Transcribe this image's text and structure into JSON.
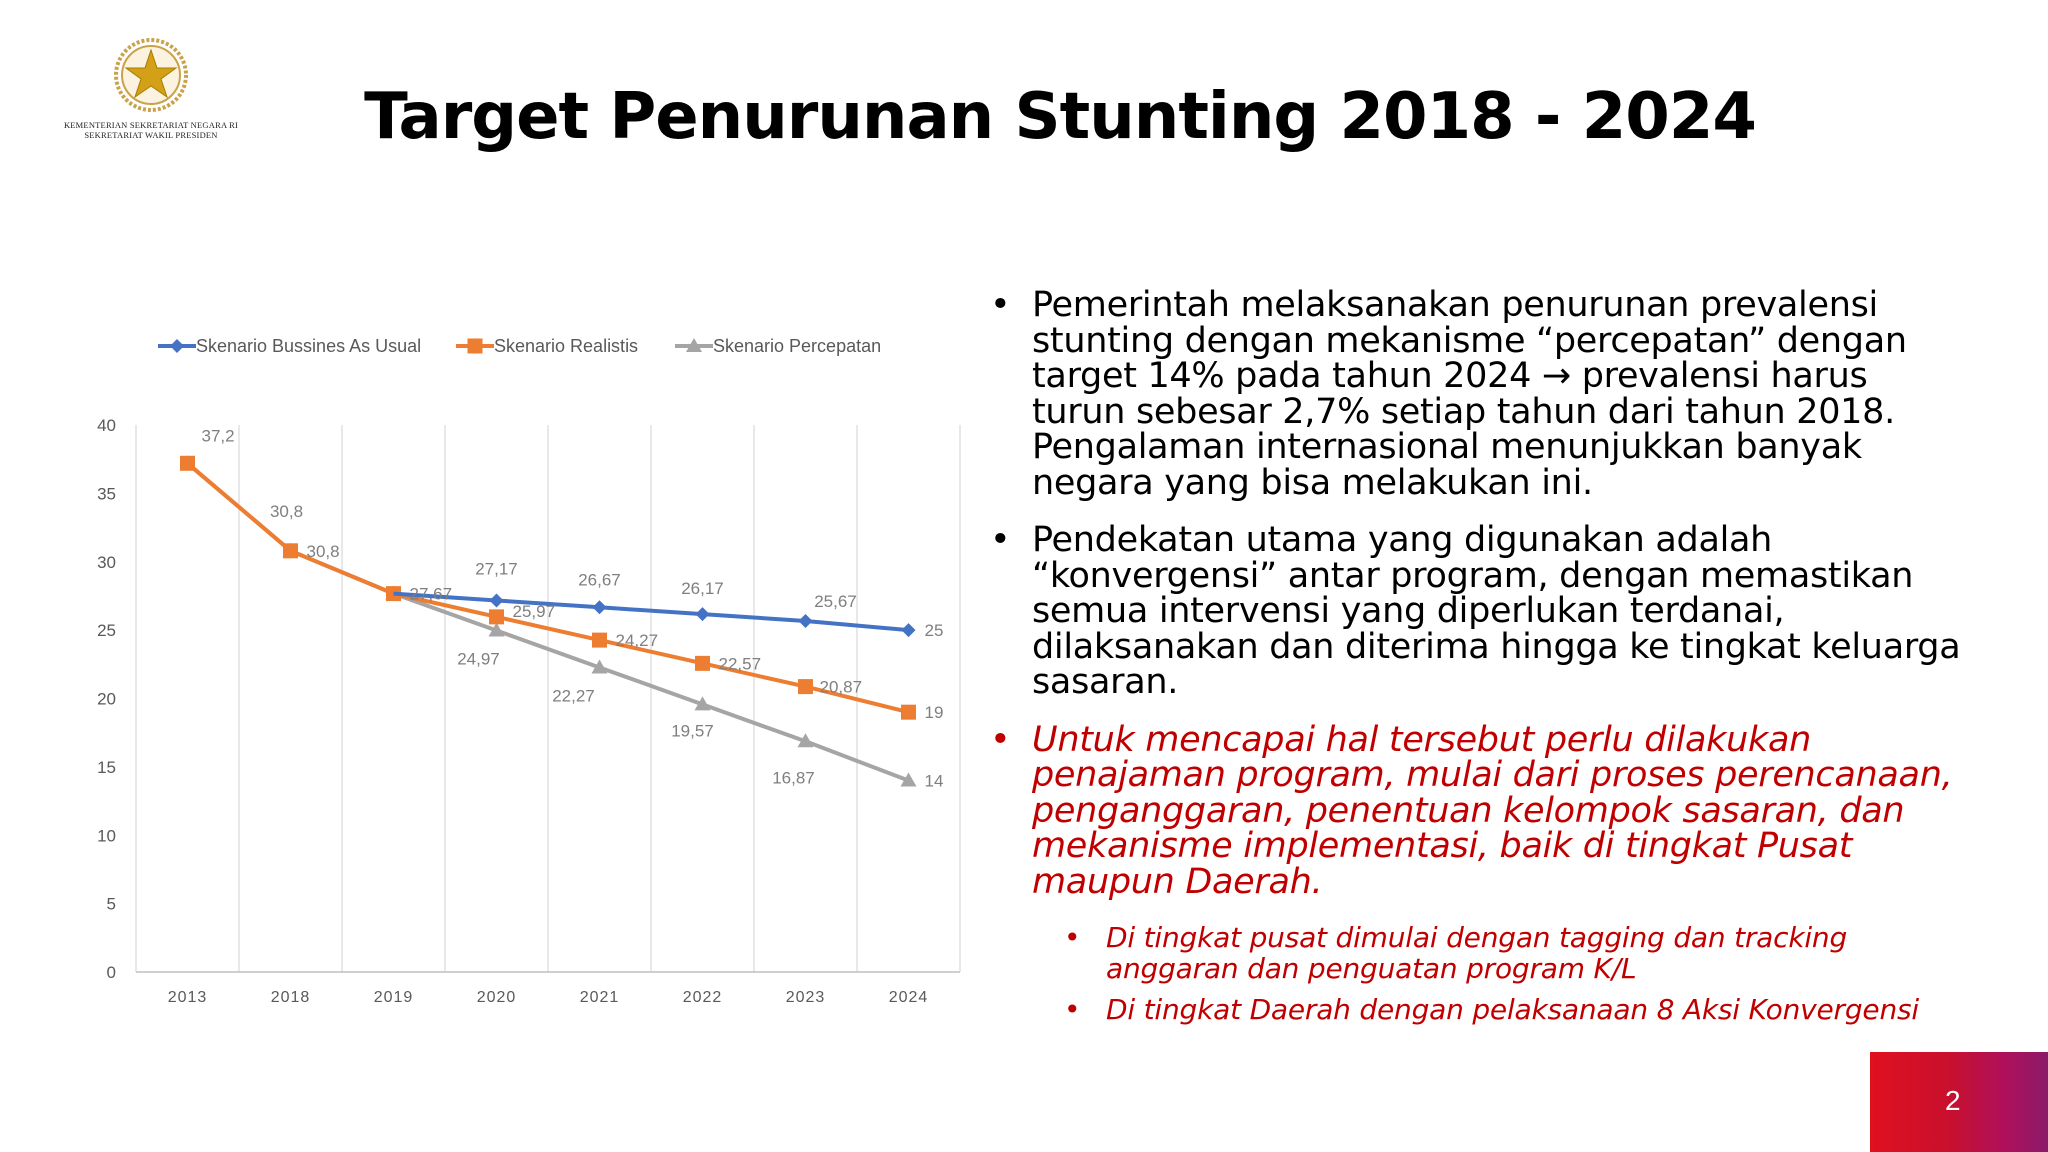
{
  "header": {
    "logo_icon": "garuda-star-emblem-icon",
    "org_line1": "KEMENTERIAN SEKRETARIAT NEGARA RI",
    "org_line2": "SEKRETARIAT WAKIL PRESIDEN",
    "title": "Target Penurunan Stunting 2018 - 2024"
  },
  "chart_data": {
    "type": "line",
    "categories": [
      "2013",
      "2018",
      "2019",
      "2020",
      "2021",
      "2022",
      "2023",
      "2024"
    ],
    "ylim": [
      0,
      40
    ],
    "yticks": [
      "0",
      "5",
      "10",
      "15",
      "20",
      "25",
      "30",
      "35",
      "40"
    ],
    "grid": "vertical",
    "legend": "top",
    "series": [
      {
        "name": "Skenario Bussines As Usual",
        "color": "#4472c4",
        "marker": "diamond",
        "values": [
          null,
          null,
          null,
          27.17,
          26.67,
          26.17,
          25.67,
          25
        ],
        "labels": [
          "",
          "",
          "",
          "27,17",
          "26,67",
          "26,17",
          "25,67",
          "25"
        ]
      },
      {
        "name": "Skenario Realistis",
        "color": "#ed7d31",
        "marker": "square",
        "values": [
          37.2,
          30.8,
          27.67,
          25.97,
          24.27,
          22.57,
          20.87,
          19
        ],
        "labels": [
          "",
          "30,8",
          "27,67",
          "25,97",
          "24,27",
          "22,57",
          "20,87",
          "19"
        ]
      },
      {
        "name": "Skenario Percepatan",
        "color": "#a5a5a5",
        "marker": "triangle",
        "values": [
          37.2,
          30.8,
          27.67,
          24.97,
          22.27,
          19.57,
          16.87,
          14
        ],
        "labels": [
          "37,2",
          "30,8",
          "",
          "24,97",
          "22,27",
          "19,57",
          "16,87",
          "14"
        ]
      }
    ]
  },
  "bullets": [
    {
      "lines": [
        "Pemerintah melaksanakan penurunan  prevalensi",
        "stunting  dengan mekanisme “percepatan” dengan",
        "target 14% pada tahun 2024 → prevalensi harus",
        "turun sebesar 2,7% setiap tahun dari tahun 2018.",
        "Pengalaman internasional menunjukkan banyak",
        "negara yang bisa melakukan ini."
      ]
    },
    {
      "lines": [
        "Pendekatan utama yang digunakan adalah",
        "“konvergensi” antar program, dengan memastikan",
        "semua intervensi yang diperlukan terdanai,",
        "dilaksanakan dan diterima hingga ke tingkat keluarga",
        "sasaran."
      ]
    },
    {
      "lines": [
        "Untuk mencapai hal tersebut perlu dilakukan",
        "penajaman program, mulai dari proses perencanaan,",
        "penganggaran, penentuan kelompok sasaran, dan",
        "mekanisme implementasi, baik di tingkat Pusat",
        "maupun Daerah."
      ]
    }
  ],
  "sub_bullets": [
    {
      "lines": [
        "Di tingkat pusat dimulai dengan tagging dan tracking",
        "anggaran dan penguatan program K/L"
      ]
    },
    {
      "lines": [
        "Di tingkat Daerah dengan pelaksanaan 8 Aksi Konvergensi"
      ]
    }
  ],
  "bullet_char": "•",
  "page_number": "2"
}
